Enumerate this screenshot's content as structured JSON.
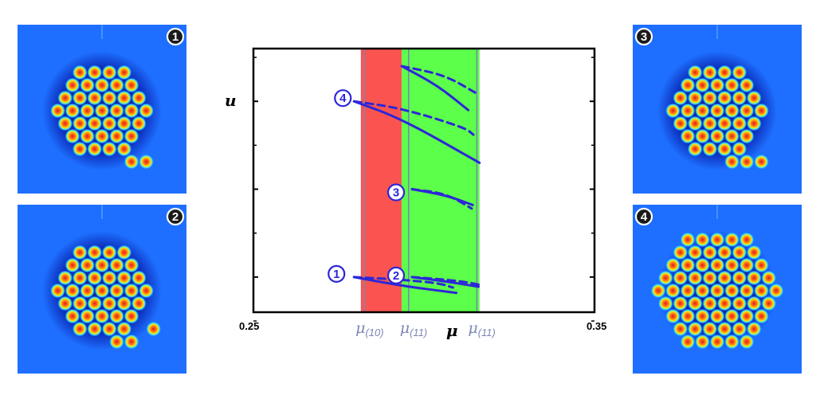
{
  "chart_data": {
    "type": "line",
    "title": "",
    "xlabel": "μ",
    "ylabel": "u",
    "xlim": [
      0.25,
      0.35
    ],
    "x_tick_labels": [
      "0.25",
      "0.35"
    ],
    "regions": [
      {
        "name": "red",
        "x": [
          0.2815,
          0.2935
        ],
        "color": "#fb5450"
      },
      {
        "name": "green",
        "x": [
          0.2935,
          0.3163
        ],
        "color": "#5cff4a"
      }
    ],
    "reference_lines": [
      {
        "x": 0.2825,
        "label": "μ",
        "subscript": "(10)"
      },
      {
        "x": 0.2955,
        "label": "μ",
        "subscript": "(11)"
      },
      {
        "x": 0.3155,
        "label": "μ",
        "subscript": "(11)"
      }
    ],
    "series": [
      {
        "label": "1",
        "style": "solid",
        "x": [
          0.2795,
          0.2935,
          0.3095
        ],
        "y": [
          1.0,
          0.9,
          0.82
        ]
      },
      {
        "label": "1",
        "style": "dashed",
        "x": [
          0.2795,
          0.2935,
          0.3045,
          0.3085
        ],
        "y": [
          1.0,
          0.97,
          0.93,
          0.88
        ]
      },
      {
        "label": "2",
        "style": "solid",
        "x": [
          0.2965,
          0.3065,
          0.316
        ],
        "y": [
          1.0,
          0.95,
          0.89
        ]
      },
      {
        "label": "2",
        "style": "dashed",
        "x": [
          0.2965,
          0.3065,
          0.313,
          0.3163
        ],
        "y": [
          1.0,
          0.97,
          0.94,
          0.91
        ]
      },
      {
        "label": "3",
        "style": "solid",
        "x": [
          0.2965,
          0.3065,
          0.3143
        ],
        "y": [
          2.0,
          1.93,
          1.82
        ]
      },
      {
        "label": "3",
        "style": "dashed",
        "x": [
          0.2965,
          0.3065,
          0.314
        ],
        "y": [
          2.0,
          1.95,
          1.78
        ]
      },
      {
        "label": "4",
        "style": "solid",
        "x": [
          0.2795,
          0.2935,
          0.3163
        ],
        "y": [
          3.0,
          2.8,
          2.3
        ]
      },
      {
        "label": "4",
        "style": "dashed",
        "x": [
          0.2795,
          0.2935,
          0.312,
          0.3145
        ],
        "y": [
          3.0,
          2.92,
          2.7,
          2.62
        ]
      },
      {
        "label": "",
        "style": "solid",
        "x": [
          0.2935,
          0.304,
          0.313
        ],
        "y": [
          3.4,
          3.18,
          2.9
        ]
      },
      {
        "label": "",
        "style": "dashed",
        "x": [
          0.2935,
          0.306,
          0.315
        ],
        "y": [
          3.4,
          3.3,
          3.1
        ]
      }
    ],
    "marker_labels": [
      "1",
      "2",
      "3",
      "4"
    ]
  },
  "panels": [
    {
      "label": "1",
      "pattern": "hexagonal spot lattice"
    },
    {
      "label": "2",
      "pattern": "hexagonal spot lattice"
    },
    {
      "label": "3",
      "pattern": "hexagonal spot lattice"
    },
    {
      "label": "4",
      "pattern": "hexagonal spot lattice"
    }
  ],
  "colors": {
    "background_field": "#1e6fff",
    "spot_core": "#e41a1a",
    "spot_ring": "#ffe600",
    "curve": "#2d26d8",
    "reference_line": "#7d86b5"
  }
}
